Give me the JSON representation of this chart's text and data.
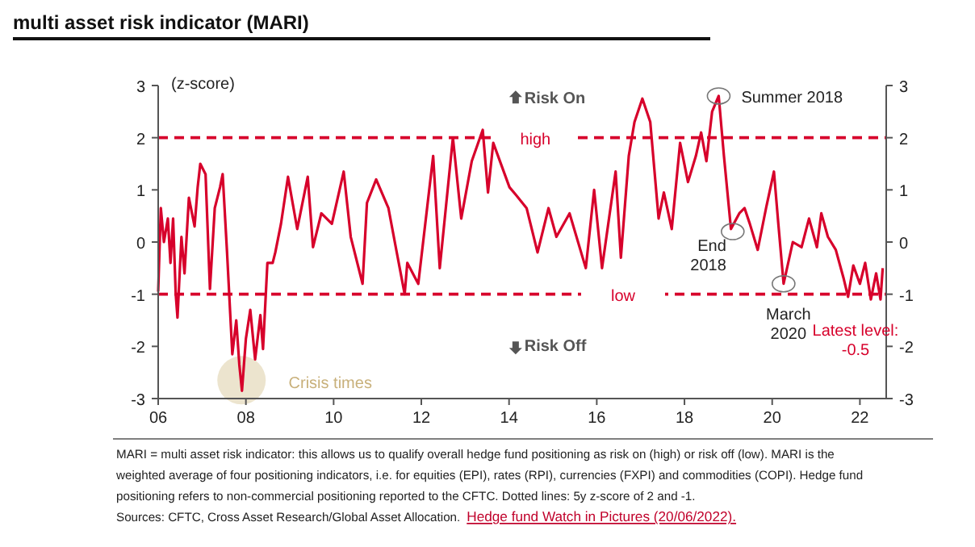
{
  "chart_data": {
    "type": "line",
    "title": "multi asset risk indicator (MARI)",
    "annotations": [
      "(z-score)",
      "Risk On",
      "Risk Off",
      "Latest level: -0.5",
      {
        "text": "Crisis times",
        "x": 2007.9,
        "y": -2.65
      },
      {
        "text": "Summer 2018",
        "x": 2018.78,
        "y": 2.8
      },
      {
        "text": "End 2018",
        "x": 2019.1,
        "y": 0.2
      },
      {
        "text": "March 2020",
        "x": 2020.26,
        "y": -0.8
      },
      "MARI = multi asset risk indicator: this allows us to qualify overall hedge fund positioning as risk on (high) or risk off (low). MARI is the weighted average of four positioning indicators, i.e. for equities (EPI), rates (RPI), currencies (FXPI) and commodities (COPI). Hedge fund positioning refers to non-commercial positioning reported to the CFTC. Dotted lines: 5y z-score of 2 and -1.",
      "Sources: CFTC, Cross Asset Research/Global Asset Allocation.",
      "Hedge fund Watch in Pictures (20/06/2022)."
    ],
    "series": [
      {
        "color": "#d7002b",
        "x": [
          2006.0,
          2006.06,
          2006.13,
          2006.22,
          2006.28,
          2006.34,
          2006.4,
          2006.44,
          2006.53,
          2006.6,
          2006.7,
          2006.83,
          2006.9,
          2006.96,
          2007.08,
          2007.18,
          2007.29,
          2007.41,
          2007.47,
          2007.57,
          2007.69,
          2007.78,
          2007.85,
          2007.91,
          2008.0,
          2008.1,
          2008.21,
          2008.33,
          2008.39,
          2008.49,
          2008.61,
          2008.67,
          2008.8,
          2008.96,
          2009.17,
          2009.41,
          2009.53,
          2009.72,
          2009.96,
          2010.23,
          2010.39,
          2010.66,
          2010.76,
          2010.97,
          2011.25,
          2011.44,
          2011.62,
          2011.68,
          2011.93,
          2012.27,
          2012.42,
          2012.72,
          2012.91,
          2013.15,
          2013.4,
          2013.52,
          2013.64,
          2014.01,
          2014.16,
          2014.4,
          2014.65,
          2014.9,
          2015.08,
          2015.38,
          2015.75,
          2015.94,
          2016.12,
          2016.43,
          2016.55,
          2016.73,
          2016.86,
          2017.04,
          2017.22,
          2017.41,
          2017.53,
          2017.71,
          2017.9,
          2018.08,
          2018.26,
          2018.38,
          2018.5,
          2018.63,
          2018.78,
          2018.9,
          2019.06,
          2019.25,
          2019.37,
          2019.49,
          2019.67,
          2019.86,
          2020.04,
          2020.14,
          2020.26,
          2020.47,
          2020.67,
          2020.84,
          2021.02,
          2021.12,
          2021.27,
          2021.45,
          2021.63,
          2021.73,
          2021.85,
          2022.0,
          2022.12,
          2022.25,
          2022.37,
          2022.47,
          2022.52
        ],
        "values": [
          -0.95,
          0.65,
          0,
          0.45,
          -0.4,
          0.45,
          -1.0,
          -1.45,
          0.1,
          -0.6,
          0.85,
          0.3,
          1.05,
          1.5,
          1.3,
          -0.9,
          0.65,
          1.05,
          1.3,
          -0.2,
          -2.15,
          -1.5,
          -2.35,
          -2.85,
          -1.85,
          -1.3,
          -2.25,
          -1.4,
          -2.05,
          -0.4,
          -0.4,
          -0.2,
          0.35,
          1.25,
          0.25,
          1.25,
          -0.1,
          0.55,
          0.35,
          1.35,
          0.1,
          -0.8,
          0.75,
          1.2,
          0.65,
          -0.2,
          -1.0,
          -0.4,
          -0.8,
          1.65,
          -0.5,
          2.0,
          0.45,
          1.55,
          2.15,
          0.95,
          1.9,
          1.05,
          0.9,
          0.65,
          -0.2,
          0.65,
          0.1,
          0.55,
          -0.5,
          1.0,
          -0.5,
          1.35,
          -0.3,
          1.65,
          2.3,
          2.75,
          2.3,
          0.45,
          0.95,
          0.25,
          1.9,
          1.15,
          1.65,
          2.1,
          1.55,
          2.5,
          2.8,
          1.65,
          0.25,
          0.55,
          0.65,
          0.35,
          -0.15,
          0.65,
          1.35,
          0.35,
          -0.8,
          0.0,
          -0.1,
          0.45,
          -0.1,
          0.55,
          0.1,
          -0.15,
          -0.7,
          -1.05,
          -0.45,
          -0.8,
          -0.4,
          -1.1,
          -0.6,
          -1.1,
          -0.5
        ]
      }
    ],
    "xlim": [
      2006,
      2022.6
    ],
    "xticks": [
      {
        "value": 2006,
        "label": "06"
      },
      {
        "value": 2008,
        "label": "08"
      },
      {
        "value": 2010,
        "label": "10"
      },
      {
        "value": 2012,
        "label": "12"
      },
      {
        "value": 2014,
        "label": "14"
      },
      {
        "value": 2016,
        "label": "16"
      },
      {
        "value": 2018,
        "label": "18"
      },
      {
        "value": 2020,
        "label": "20"
      },
      {
        "value": 2022,
        "label": "22"
      }
    ],
    "ylim": [
      -3,
      3
    ],
    "yticks": [
      -3,
      -2,
      -1,
      0,
      1,
      2,
      3
    ],
    "y2lim": [
      -3,
      3
    ],
    "y2ticks": [
      -3,
      -2,
      -1,
      0,
      1,
      2,
      3
    ],
    "ref_lines": [
      {
        "axis": "y",
        "value": 2,
        "label": "high",
        "color": "#d7002b",
        "line_style": "dashed"
      },
      {
        "axis": "y",
        "value": -1,
        "label": "low",
        "color": "#d7002b",
        "line_style": "dashed"
      }
    ],
    "grid": false
  }
}
